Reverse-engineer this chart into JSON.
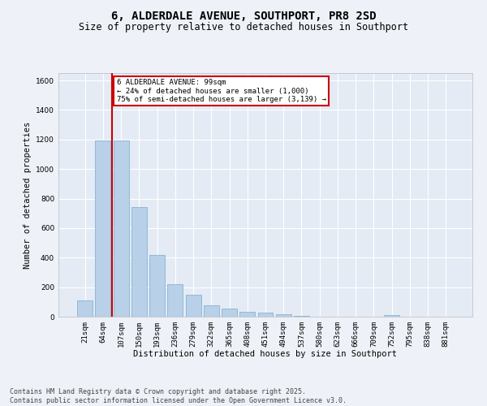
{
  "title": "6, ALDERDALE AVENUE, SOUTHPORT, PR8 2SD",
  "subtitle": "Size of property relative to detached houses in Southport",
  "xlabel": "Distribution of detached houses by size in Southport",
  "ylabel": "Number of detached properties",
  "categories": [
    "21sqm",
    "64sqm",
    "107sqm",
    "150sqm",
    "193sqm",
    "236sqm",
    "279sqm",
    "322sqm",
    "365sqm",
    "408sqm",
    "451sqm",
    "494sqm",
    "537sqm",
    "580sqm",
    "623sqm",
    "666sqm",
    "709sqm",
    "752sqm",
    "795sqm",
    "838sqm",
    "881sqm"
  ],
  "values": [
    110,
    1195,
    1195,
    740,
    420,
    220,
    150,
    75,
    55,
    35,
    25,
    15,
    5,
    2,
    1,
    0,
    0,
    12,
    0,
    0,
    0
  ],
  "bar_color": "#b8d0e8",
  "bar_edgecolor": "#7aaace",
  "vline_color": "#cc0000",
  "vline_x_index": 1.5,
  "annotation_text": "6 ALDERDALE AVENUE: 99sqm\n← 24% of detached houses are smaller (1,000)\n75% of semi-detached houses are larger (3,139) →",
  "annotation_box_color": "#cc0000",
  "ylim": [
    0,
    1650
  ],
  "yticks": [
    0,
    200,
    400,
    600,
    800,
    1000,
    1200,
    1400,
    1600
  ],
  "bg_color": "#eef2f8",
  "plot_bg_color": "#e4ebf5",
  "footer": "Contains HM Land Registry data © Crown copyright and database right 2025.\nContains public sector information licensed under the Open Government Licence v3.0.",
  "grid_color": "#ffffff",
  "title_fontsize": 10,
  "subtitle_fontsize": 8.5,
  "axis_label_fontsize": 7.5,
  "tick_fontsize": 6.5,
  "footer_fontsize": 6,
  "annotation_fontsize": 6.5
}
